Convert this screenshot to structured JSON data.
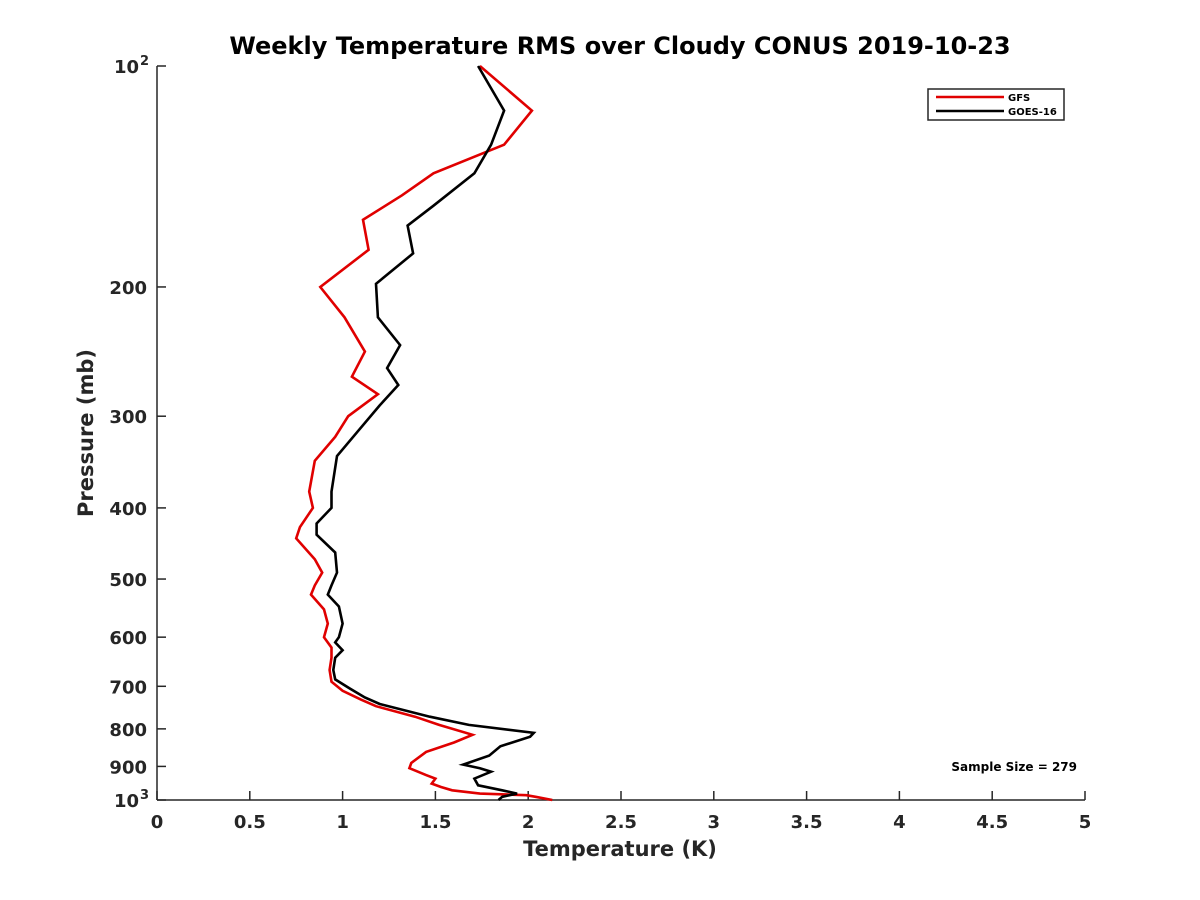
{
  "chart_data": {
    "type": "line",
    "title": "Weekly Temperature RMS over Cloudy CONUS 2019-10-23",
    "xlabel": "Temperature (K)",
    "ylabel": "Pressure (mb)",
    "xlim": [
      0,
      5
    ],
    "ylim": [
      100,
      1000
    ],
    "yscale": "log",
    "y_reversed": true,
    "grid": false,
    "legend_position": "top-right",
    "xticks": [
      {
        "value": 0,
        "label": "0"
      },
      {
        "value": 0.5,
        "label": "0.5"
      },
      {
        "value": 1,
        "label": "1"
      },
      {
        "value": 1.5,
        "label": "1.5"
      },
      {
        "value": 2,
        "label": "2"
      },
      {
        "value": 2.5,
        "label": "2.5"
      },
      {
        "value": 3,
        "label": "3"
      },
      {
        "value": 3.5,
        "label": "3.5"
      },
      {
        "value": 4,
        "label": "4"
      },
      {
        "value": 4.5,
        "label": "4.5"
      },
      {
        "value": 5,
        "label": "5"
      }
    ],
    "yticks": [
      {
        "value": 100,
        "label": "10",
        "exp": "2"
      },
      {
        "value": 200,
        "label": "200"
      },
      {
        "value": 300,
        "label": "300"
      },
      {
        "value": 400,
        "label": "400"
      },
      {
        "value": 500,
        "label": "500"
      },
      {
        "value": 600,
        "label": "600"
      },
      {
        "value": 700,
        "label": "700"
      },
      {
        "value": 800,
        "label": "800"
      },
      {
        "value": 900,
        "label": "900"
      },
      {
        "value": 1000,
        "label": "10",
        "exp": "3"
      }
    ],
    "series": [
      {
        "name": "GFS",
        "color": "#e00000",
        "points": [
          [
            1.74,
            100
          ],
          [
            2.02,
            115
          ],
          [
            1.87,
            128
          ],
          [
            1.49,
            140
          ],
          [
            1.32,
            150
          ],
          [
            1.11,
            162
          ],
          [
            1.14,
            178
          ],
          [
            0.88,
            200
          ],
          [
            1.01,
            220
          ],
          [
            1.12,
            245
          ],
          [
            1.05,
            265
          ],
          [
            1.19,
            280
          ],
          [
            1.03,
            300
          ],
          [
            0.96,
            320
          ],
          [
            0.85,
            345
          ],
          [
            0.82,
            380
          ],
          [
            0.84,
            400
          ],
          [
            0.77,
            425
          ],
          [
            0.75,
            440
          ],
          [
            0.85,
            470
          ],
          [
            0.89,
            490
          ],
          [
            0.85,
            510
          ],
          [
            0.83,
            525
          ],
          [
            0.9,
            550
          ],
          [
            0.92,
            575
          ],
          [
            0.9,
            600
          ],
          [
            0.94,
            620
          ],
          [
            0.94,
            640
          ],
          [
            0.93,
            665
          ],
          [
            0.94,
            690
          ],
          [
            1.0,
            710
          ],
          [
            1.1,
            730
          ],
          [
            1.18,
            745
          ],
          [
            1.39,
            770
          ],
          [
            1.52,
            790
          ],
          [
            1.7,
            815
          ],
          [
            1.6,
            835
          ],
          [
            1.45,
            860
          ],
          [
            1.37,
            890
          ],
          [
            1.36,
            905
          ],
          [
            1.45,
            925
          ],
          [
            1.5,
            935
          ],
          [
            1.48,
            950
          ],
          [
            1.53,
            960
          ],
          [
            1.59,
            970
          ],
          [
            1.74,
            980
          ],
          [
            1.99,
            985
          ],
          [
            2.04,
            990
          ],
          [
            2.13,
            1000
          ]
        ]
      },
      {
        "name": "GOES-16",
        "color": "#000000",
        "points": [
          [
            1.73,
            100
          ],
          [
            1.87,
            115
          ],
          [
            1.8,
            128
          ],
          [
            1.71,
            140
          ],
          [
            1.49,
            155
          ],
          [
            1.35,
            165
          ],
          [
            1.38,
            180
          ],
          [
            1.18,
            198
          ],
          [
            1.19,
            220
          ],
          [
            1.31,
            240
          ],
          [
            1.24,
            258
          ],
          [
            1.3,
            272
          ],
          [
            1.2,
            290
          ],
          [
            1.08,
            315
          ],
          [
            0.97,
            340
          ],
          [
            0.94,
            380
          ],
          [
            0.94,
            400
          ],
          [
            0.86,
            420
          ],
          [
            0.86,
            435
          ],
          [
            0.96,
            460
          ],
          [
            0.97,
            490
          ],
          [
            0.94,
            510
          ],
          [
            0.92,
            525
          ],
          [
            0.98,
            545
          ],
          [
            1.0,
            575
          ],
          [
            0.98,
            600
          ],
          [
            0.96,
            610
          ],
          [
            1.0,
            625
          ],
          [
            0.96,
            640
          ],
          [
            0.95,
            665
          ],
          [
            0.96,
            685
          ],
          [
            1.04,
            705
          ],
          [
            1.12,
            725
          ],
          [
            1.2,
            740
          ],
          [
            1.47,
            770
          ],
          [
            1.68,
            790
          ],
          [
            2.03,
            810
          ],
          [
            2.01,
            820
          ],
          [
            1.85,
            845
          ],
          [
            1.79,
            870
          ],
          [
            1.65,
            895
          ],
          [
            1.74,
            905
          ],
          [
            1.8,
            915
          ],
          [
            1.71,
            935
          ],
          [
            1.73,
            955
          ],
          [
            1.86,
            970
          ],
          [
            1.94,
            980
          ],
          [
            1.86,
            990
          ],
          [
            1.84,
            1000
          ]
        ]
      }
    ],
    "annotations": [
      {
        "text": "Sample Size = 279",
        "position": "bottom-right"
      }
    ]
  }
}
